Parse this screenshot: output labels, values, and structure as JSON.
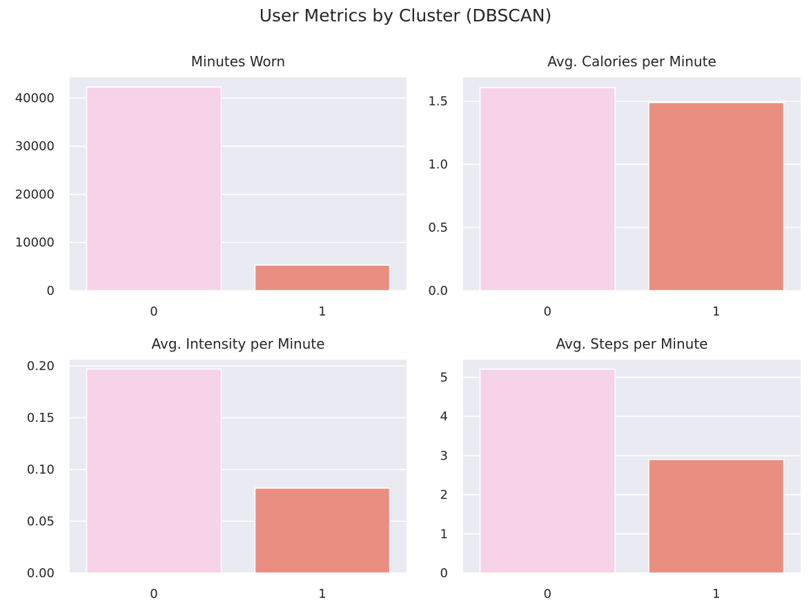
{
  "figure": {
    "title": "User Metrics by Cluster (DBSCAN)"
  },
  "colors": {
    "plot_background": "#eaeaf2",
    "grid": "#ffffff",
    "bar_cluster_0": "#f6d3e6",
    "bar_cluster_1": "#ea8e82"
  },
  "chart_data": [
    {
      "type": "bar",
      "title": "Minutes Worn",
      "categories": [
        "0",
        "1"
      ],
      "values": [
        42300,
        5300
      ],
      "ylim": [
        0,
        44300
      ],
      "yticks": [
        0,
        10000,
        20000,
        30000,
        40000
      ],
      "ytick_labels": [
        "0",
        "10000",
        "20000",
        "30000",
        "40000"
      ],
      "grid": true
    },
    {
      "type": "bar",
      "title": "Avg. Calories per Minute",
      "categories": [
        "0",
        "1"
      ],
      "values": [
        1.61,
        1.49
      ],
      "ylim": [
        0,
        1.69
      ],
      "yticks": [
        0,
        0.5,
        1.0,
        1.5
      ],
      "ytick_labels": [
        "0.0",
        "0.5",
        "1.0",
        "1.5"
      ],
      "grid": true
    },
    {
      "type": "bar",
      "title": "Avg. Intensity per Minute",
      "categories": [
        "0",
        "1"
      ],
      "values": [
        0.197,
        0.082
      ],
      "ylim": [
        0,
        0.206
      ],
      "yticks": [
        0,
        0.05,
        0.1,
        0.15,
        0.2
      ],
      "ytick_labels": [
        "0.00",
        "0.05",
        "0.10",
        "0.15",
        "0.20"
      ],
      "grid": true
    },
    {
      "type": "bar",
      "title": "Avg. Steps per Minute",
      "categories": [
        "0",
        "1"
      ],
      "values": [
        5.21,
        2.9
      ],
      "ylim": [
        0,
        5.45
      ],
      "yticks": [
        0,
        1,
        2,
        3,
        4,
        5
      ],
      "ytick_labels": [
        "0",
        "1",
        "2",
        "3",
        "4",
        "5"
      ],
      "grid": true
    }
  ]
}
